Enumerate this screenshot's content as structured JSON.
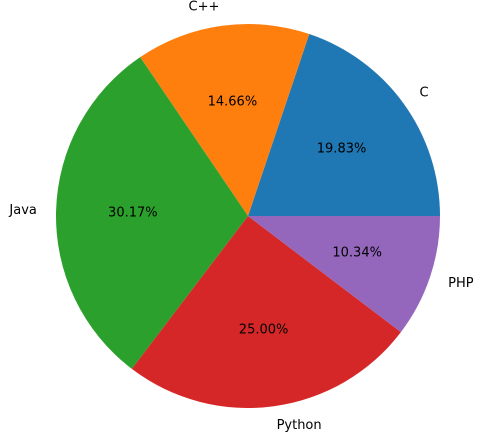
{
  "chart_data": {
    "type": "pie",
    "categories": [
      "C",
      "C++",
      "Java",
      "Python",
      "PHP"
    ],
    "values": [
      19.83,
      14.66,
      30.17,
      25.0,
      10.34
    ],
    "value_labels": [
      "19.83%",
      "14.66%",
      "30.17%",
      "25.00%",
      "10.34%"
    ],
    "colors": [
      "#1f77b4",
      "#ff7f0e",
      "#2ca02c",
      "#d62728",
      "#9467bd"
    ],
    "start_angle_deg": 0,
    "direction": "counterclockwise",
    "legend": "none"
  }
}
